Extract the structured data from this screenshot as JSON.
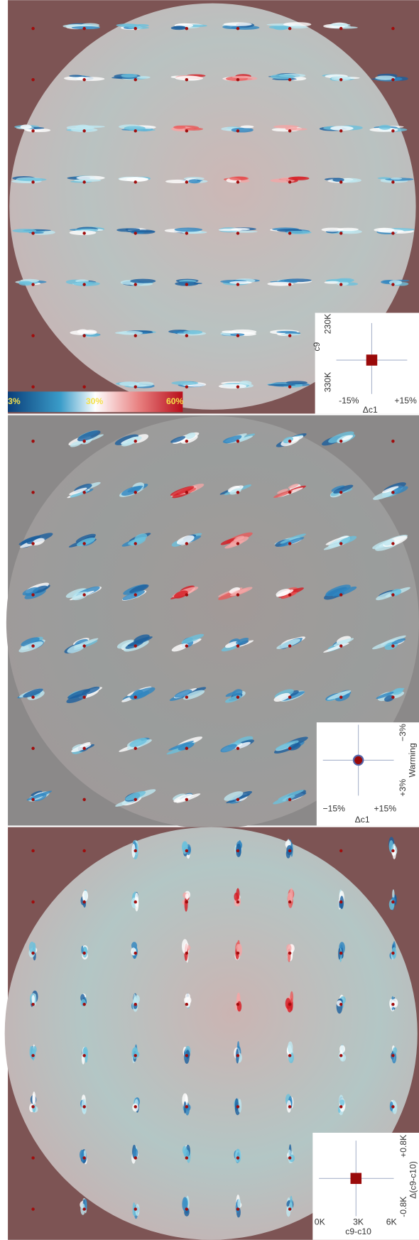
{
  "panels": [
    {
      "colorbar": {
        "labels": [
          "3%",
          "30%",
          "60%"
        ]
      },
      "inset": {
        "y_ticks": [
          "230K",
          "330K"
        ],
        "y_label": "c9",
        "x_ticks": [
          "-15%",
          "+15%"
        ],
        "x_label": "Δc1"
      }
    },
    {
      "inset": {
        "y_ticks": [
          "−3%",
          "+3%"
        ],
        "y_label": "Warming",
        "x_ticks": [
          "−15%",
          "+15%"
        ],
        "x_label": "Δc1"
      }
    },
    {
      "inset": {
        "y_ticks": [
          "+0.8K",
          "-0.8K"
        ],
        "y_label": "Δ(c9-c10)",
        "x_ticks": [
          "0K",
          "3K",
          "6K"
        ],
        "x_label": "c9-c10"
      }
    }
  ]
}
